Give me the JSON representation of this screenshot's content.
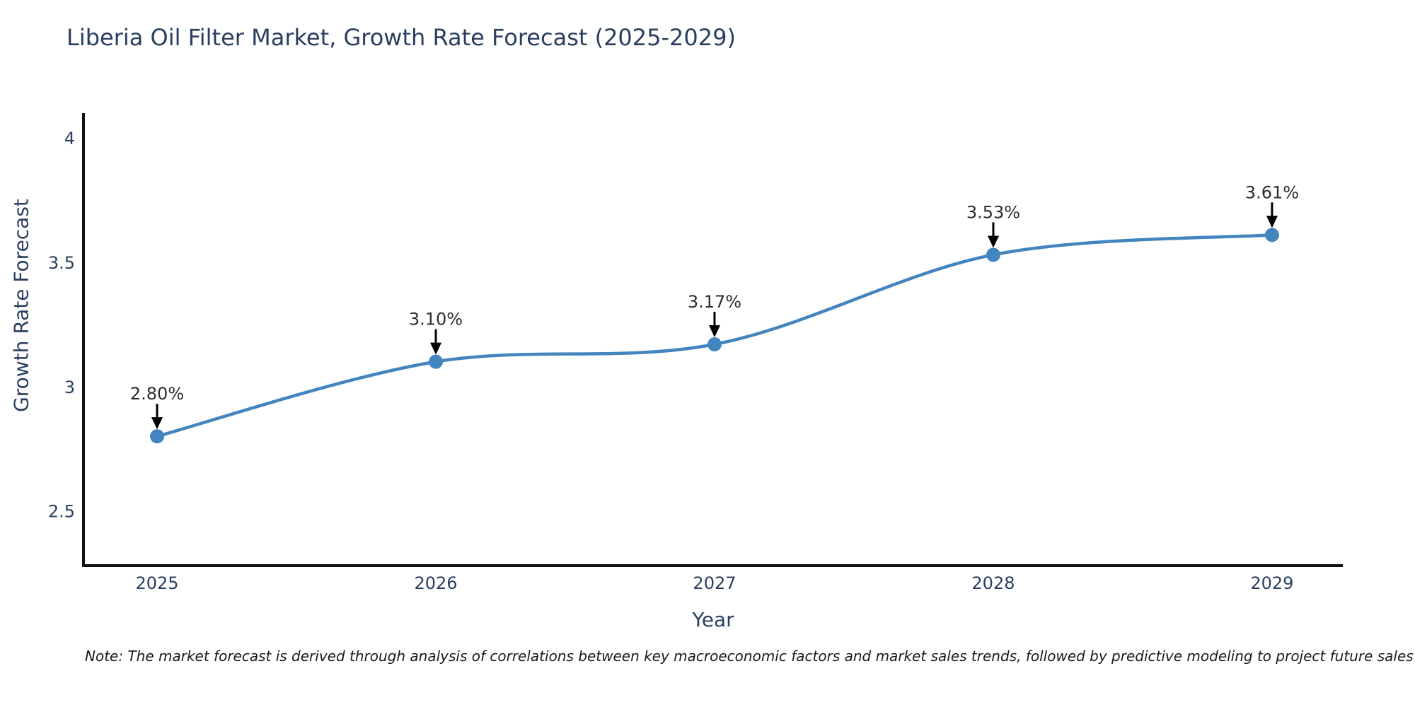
{
  "note": "Note: The market forecast is derived through analysis of correlations between key macroeconomic factors and market sales trends, followed by predictive modeling to project future sales",
  "chart_data": {
    "type": "line",
    "line_shape": "spline",
    "title": "Liberia Oil Filter Market, Growth Rate Forecast (2025-2029)",
    "xlabel": "Year",
    "ylabel": "Growth Rate Forecast",
    "x": [
      2025,
      2026,
      2027,
      2028,
      2029
    ],
    "values": [
      2.8,
      3.1,
      3.17,
      3.53,
      3.61
    ],
    "point_labels": [
      "2.80%",
      "3.10%",
      "3.17%",
      "3.53%",
      "3.61%"
    ],
    "xtick_labels": [
      "2025",
      "2026",
      "2027",
      "2028",
      "2029"
    ],
    "ytick_labels": [
      "2.5",
      "3",
      "3.5",
      "4"
    ],
    "ytick_values": [
      2.5,
      3,
      3.5,
      4
    ],
    "xlim": [
      2024.736,
      2029.254
    ],
    "ylim": [
      2.28,
      4.1
    ],
    "grid": false,
    "legend": "none",
    "annotation_style": "label-above-with-down-arrow",
    "colors": {
      "line": "#4385be",
      "marker": "#4385be",
      "axis": "#111111",
      "title_text": "#2a3f5f",
      "tick_text": "#2a3f5f",
      "annotation_text": "#2d2d2d",
      "annotation_arrow": "#000000",
      "note_text": "#1a1a1a",
      "background": "#ffffff"
    }
  }
}
